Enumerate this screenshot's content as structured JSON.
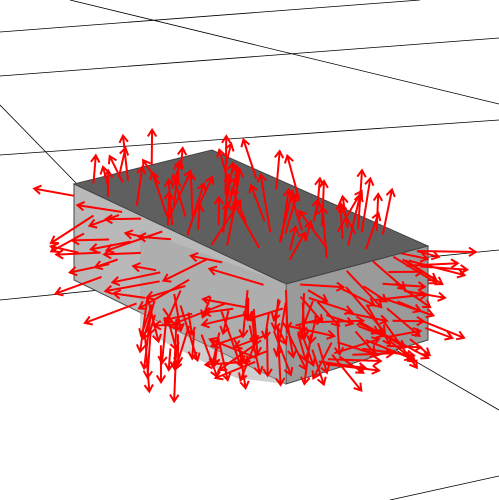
{
  "scene": {
    "background": "#ffffff",
    "grid_color": "#000000",
    "box_colors": {
      "top": "#5f5f5f",
      "front": "#9a9a9a",
      "left": "#b9b9b9",
      "edge": "#444444"
    },
    "arrow_color": "#ff0000",
    "arrow_count": 220
  }
}
